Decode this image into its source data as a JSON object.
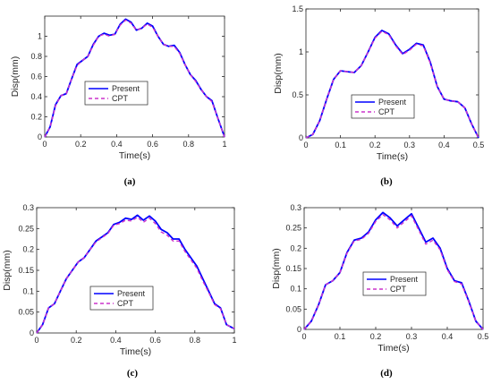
{
  "figure": {
    "legend_entries": [
      "Present",
      "CPT"
    ],
    "series_colors": {
      "Present": "#0000ff",
      "CPT": "#cc33cc"
    }
  },
  "chart_data": [
    {
      "type": "line",
      "panel_label": "(a)",
      "xlabel": "Time(s)",
      "ylabel": "Disp(mm)",
      "xlim": [
        0,
        1
      ],
      "ylim": [
        0,
        1.2
      ],
      "xticks": [
        0,
        0.2,
        0.4,
        0.6,
        0.8,
        1
      ],
      "yticks": [
        0,
        0.2,
        0.4,
        0.6,
        0.8,
        1
      ],
      "xtick_labels": [
        "0",
        "0.2",
        "0.4",
        "0.6",
        "0.8",
        "1"
      ],
      "ytick_labels": [
        "0",
        "0.2",
        "0.4",
        "0.6",
        "0.8",
        "1"
      ],
      "legend_position": "middle-left",
      "series": [
        {
          "name": "Present",
          "style": "solid",
          "x": [
            0,
            0.03,
            0.06,
            0.09,
            0.12,
            0.15,
            0.18,
            0.21,
            0.24,
            0.27,
            0.3,
            0.33,
            0.36,
            0.39,
            0.42,
            0.45,
            0.48,
            0.51,
            0.54,
            0.57,
            0.6,
            0.63,
            0.66,
            0.69,
            0.72,
            0.75,
            0.78,
            0.81,
            0.84,
            0.87,
            0.9,
            0.93,
            0.96,
            1.0
          ],
          "y": [
            0,
            0.1,
            0.32,
            0.41,
            0.43,
            0.58,
            0.72,
            0.76,
            0.8,
            0.92,
            1.0,
            1.03,
            1.01,
            1.02,
            1.12,
            1.17,
            1.14,
            1.06,
            1.08,
            1.13,
            1.1,
            1.0,
            0.92,
            0.9,
            0.91,
            0.84,
            0.72,
            0.62,
            0.56,
            0.47,
            0.4,
            0.36,
            0.2,
            0.0
          ]
        },
        {
          "name": "CPT",
          "style": "dashed",
          "x": [
            0,
            0.03,
            0.06,
            0.09,
            0.12,
            0.15,
            0.18,
            0.21,
            0.24,
            0.27,
            0.3,
            0.33,
            0.36,
            0.39,
            0.42,
            0.45,
            0.48,
            0.51,
            0.54,
            0.57,
            0.6,
            0.63,
            0.66,
            0.69,
            0.72,
            0.75,
            0.78,
            0.81,
            0.84,
            0.87,
            0.9,
            0.93,
            0.96,
            1.0
          ],
          "y": [
            0,
            0.1,
            0.31,
            0.41,
            0.43,
            0.58,
            0.71,
            0.76,
            0.8,
            0.91,
            1.0,
            1.02,
            1.0,
            1.02,
            1.11,
            1.16,
            1.13,
            1.06,
            1.08,
            1.12,
            1.09,
            1.0,
            0.92,
            0.9,
            0.9,
            0.83,
            0.72,
            0.62,
            0.55,
            0.47,
            0.4,
            0.35,
            0.2,
            0.0
          ]
        }
      ]
    },
    {
      "type": "line",
      "panel_label": "(b)",
      "xlabel": "Time(s)",
      "ylabel": "Disp(mm)",
      "xlim": [
        0,
        0.5
      ],
      "ylim": [
        0,
        1.5
      ],
      "xticks": [
        0,
        0.1,
        0.2,
        0.3,
        0.4,
        0.5
      ],
      "yticks": [
        0,
        0.5,
        1,
        1.5
      ],
      "xtick_labels": [
        "0",
        "0.1",
        "0.2",
        "0.3",
        "0.4",
        "0.5"
      ],
      "ytick_labels": [
        "0",
        "0.5",
        "1",
        "1.5"
      ],
      "legend_position": "bottom-center",
      "series": [
        {
          "name": "Present",
          "style": "solid",
          "x": [
            0,
            0.02,
            0.04,
            0.06,
            0.08,
            0.1,
            0.12,
            0.14,
            0.16,
            0.18,
            0.2,
            0.22,
            0.24,
            0.26,
            0.28,
            0.3,
            0.32,
            0.34,
            0.36,
            0.38,
            0.4,
            0.42,
            0.44,
            0.46,
            0.48,
            0.5
          ],
          "y": [
            0,
            0.04,
            0.2,
            0.45,
            0.68,
            0.78,
            0.77,
            0.76,
            0.84,
            1.0,
            1.17,
            1.25,
            1.21,
            1.08,
            0.98,
            1.03,
            1.1,
            1.08,
            0.88,
            0.6,
            0.45,
            0.43,
            0.42,
            0.35,
            0.16,
            0.0
          ]
        },
        {
          "name": "CPT",
          "style": "dashed",
          "x": [
            0,
            0.02,
            0.04,
            0.06,
            0.08,
            0.1,
            0.12,
            0.14,
            0.16,
            0.18,
            0.2,
            0.22,
            0.24,
            0.26,
            0.28,
            0.3,
            0.32,
            0.34,
            0.36,
            0.38,
            0.4,
            0.42,
            0.44,
            0.46,
            0.48,
            0.5
          ],
          "y": [
            0,
            0.04,
            0.2,
            0.45,
            0.68,
            0.78,
            0.77,
            0.76,
            0.84,
            1.0,
            1.16,
            1.24,
            1.2,
            1.07,
            0.97,
            1.02,
            1.09,
            1.07,
            0.87,
            0.6,
            0.45,
            0.43,
            0.42,
            0.35,
            0.16,
            0.0
          ]
        }
      ]
    },
    {
      "type": "line",
      "panel_label": "(c)",
      "xlabel": "Time(s)",
      "ylabel": "Disp(mm)",
      "xlim": [
        0,
        1
      ],
      "ylim": [
        0,
        0.3
      ],
      "xticks": [
        0,
        0.2,
        0.4,
        0.6,
        0.8,
        1
      ],
      "yticks": [
        0,
        0.05,
        0.1,
        0.15,
        0.2,
        0.25,
        0.3
      ],
      "xtick_labels": [
        "0",
        "0.2",
        "0.4",
        "0.6",
        "0.8",
        "1"
      ],
      "ytick_labels": [
        "0",
        "0.05",
        "0.1",
        "0.15",
        "0.2",
        "0.25",
        "0.3"
      ],
      "legend_position": "bottom-center",
      "series": [
        {
          "name": "Present",
          "style": "solid",
          "x": [
            0,
            0.03,
            0.06,
            0.09,
            0.12,
            0.15,
            0.18,
            0.21,
            0.24,
            0.27,
            0.3,
            0.33,
            0.36,
            0.39,
            0.42,
            0.45,
            0.48,
            0.51,
            0.54,
            0.57,
            0.6,
            0.63,
            0.66,
            0.69,
            0.72,
            0.75,
            0.78,
            0.81,
            0.84,
            0.87,
            0.9,
            0.93,
            0.96,
            1.0
          ],
          "y": [
            0,
            0.02,
            0.06,
            0.07,
            0.1,
            0.13,
            0.15,
            0.17,
            0.18,
            0.2,
            0.22,
            0.23,
            0.24,
            0.26,
            0.265,
            0.275,
            0.272,
            0.282,
            0.27,
            0.28,
            0.268,
            0.248,
            0.24,
            0.225,
            0.225,
            0.2,
            0.18,
            0.16,
            0.13,
            0.1,
            0.07,
            0.06,
            0.02,
            0.01
          ]
        },
        {
          "name": "CPT",
          "style": "dashed",
          "x": [
            0,
            0.03,
            0.06,
            0.09,
            0.12,
            0.15,
            0.18,
            0.21,
            0.24,
            0.27,
            0.3,
            0.33,
            0.36,
            0.39,
            0.42,
            0.45,
            0.48,
            0.51,
            0.54,
            0.57,
            0.6,
            0.63,
            0.66,
            0.69,
            0.72,
            0.75,
            0.78,
            0.81,
            0.84,
            0.87,
            0.9,
            0.93,
            0.96,
            1.0
          ],
          "y": [
            0,
            0.02,
            0.06,
            0.07,
            0.1,
            0.13,
            0.15,
            0.17,
            0.18,
            0.2,
            0.218,
            0.228,
            0.238,
            0.258,
            0.262,
            0.27,
            0.268,
            0.277,
            0.265,
            0.275,
            0.262,
            0.242,
            0.234,
            0.22,
            0.22,
            0.195,
            0.175,
            0.155,
            0.125,
            0.097,
            0.068,
            0.058,
            0.02,
            0.01
          ]
        }
      ]
    },
    {
      "type": "line",
      "panel_label": "(d)",
      "xlabel": "Time(s)",
      "ylabel": "Disp(mm)",
      "xlim": [
        0,
        0.5
      ],
      "ylim": [
        0,
        0.3
      ],
      "xticks": [
        0,
        0.1,
        0.2,
        0.3,
        0.4,
        0.5
      ],
      "yticks": [
        0,
        0.05,
        0.1,
        0.15,
        0.2,
        0.25,
        0.3
      ],
      "xtick_labels": [
        "0",
        "0.1",
        "0.2",
        "0.3",
        "0.4",
        "0.5"
      ],
      "ytick_labels": [
        "0",
        "0.05",
        "0.1",
        "0.15",
        "0.2",
        "0.25",
        "0.3"
      ],
      "legend_position": "bottom-center",
      "series": [
        {
          "name": "Present",
          "style": "solid",
          "x": [
            0,
            0.02,
            0.04,
            0.06,
            0.08,
            0.1,
            0.12,
            0.14,
            0.16,
            0.18,
            0.2,
            0.22,
            0.24,
            0.26,
            0.28,
            0.3,
            0.32,
            0.34,
            0.36,
            0.38,
            0.4,
            0.42,
            0.44,
            0.46,
            0.48,
            0.5
          ],
          "y": [
            0,
            0.02,
            0.06,
            0.11,
            0.12,
            0.14,
            0.19,
            0.22,
            0.225,
            0.24,
            0.27,
            0.288,
            0.275,
            0.255,
            0.27,
            0.285,
            0.25,
            0.215,
            0.225,
            0.2,
            0.15,
            0.12,
            0.115,
            0.07,
            0.02,
            0.0
          ]
        },
        {
          "name": "CPT",
          "style": "dashed",
          "x": [
            0,
            0.02,
            0.04,
            0.06,
            0.08,
            0.1,
            0.12,
            0.14,
            0.16,
            0.18,
            0.2,
            0.22,
            0.24,
            0.26,
            0.28,
            0.3,
            0.32,
            0.34,
            0.36,
            0.38,
            0.4,
            0.42,
            0.44,
            0.46,
            0.48,
            0.5
          ],
          "y": [
            0,
            0.02,
            0.06,
            0.11,
            0.12,
            0.14,
            0.188,
            0.218,
            0.222,
            0.237,
            0.266,
            0.283,
            0.27,
            0.25,
            0.265,
            0.28,
            0.245,
            0.21,
            0.22,
            0.196,
            0.147,
            0.118,
            0.112,
            0.068,
            0.02,
            0.0
          ]
        }
      ]
    }
  ]
}
